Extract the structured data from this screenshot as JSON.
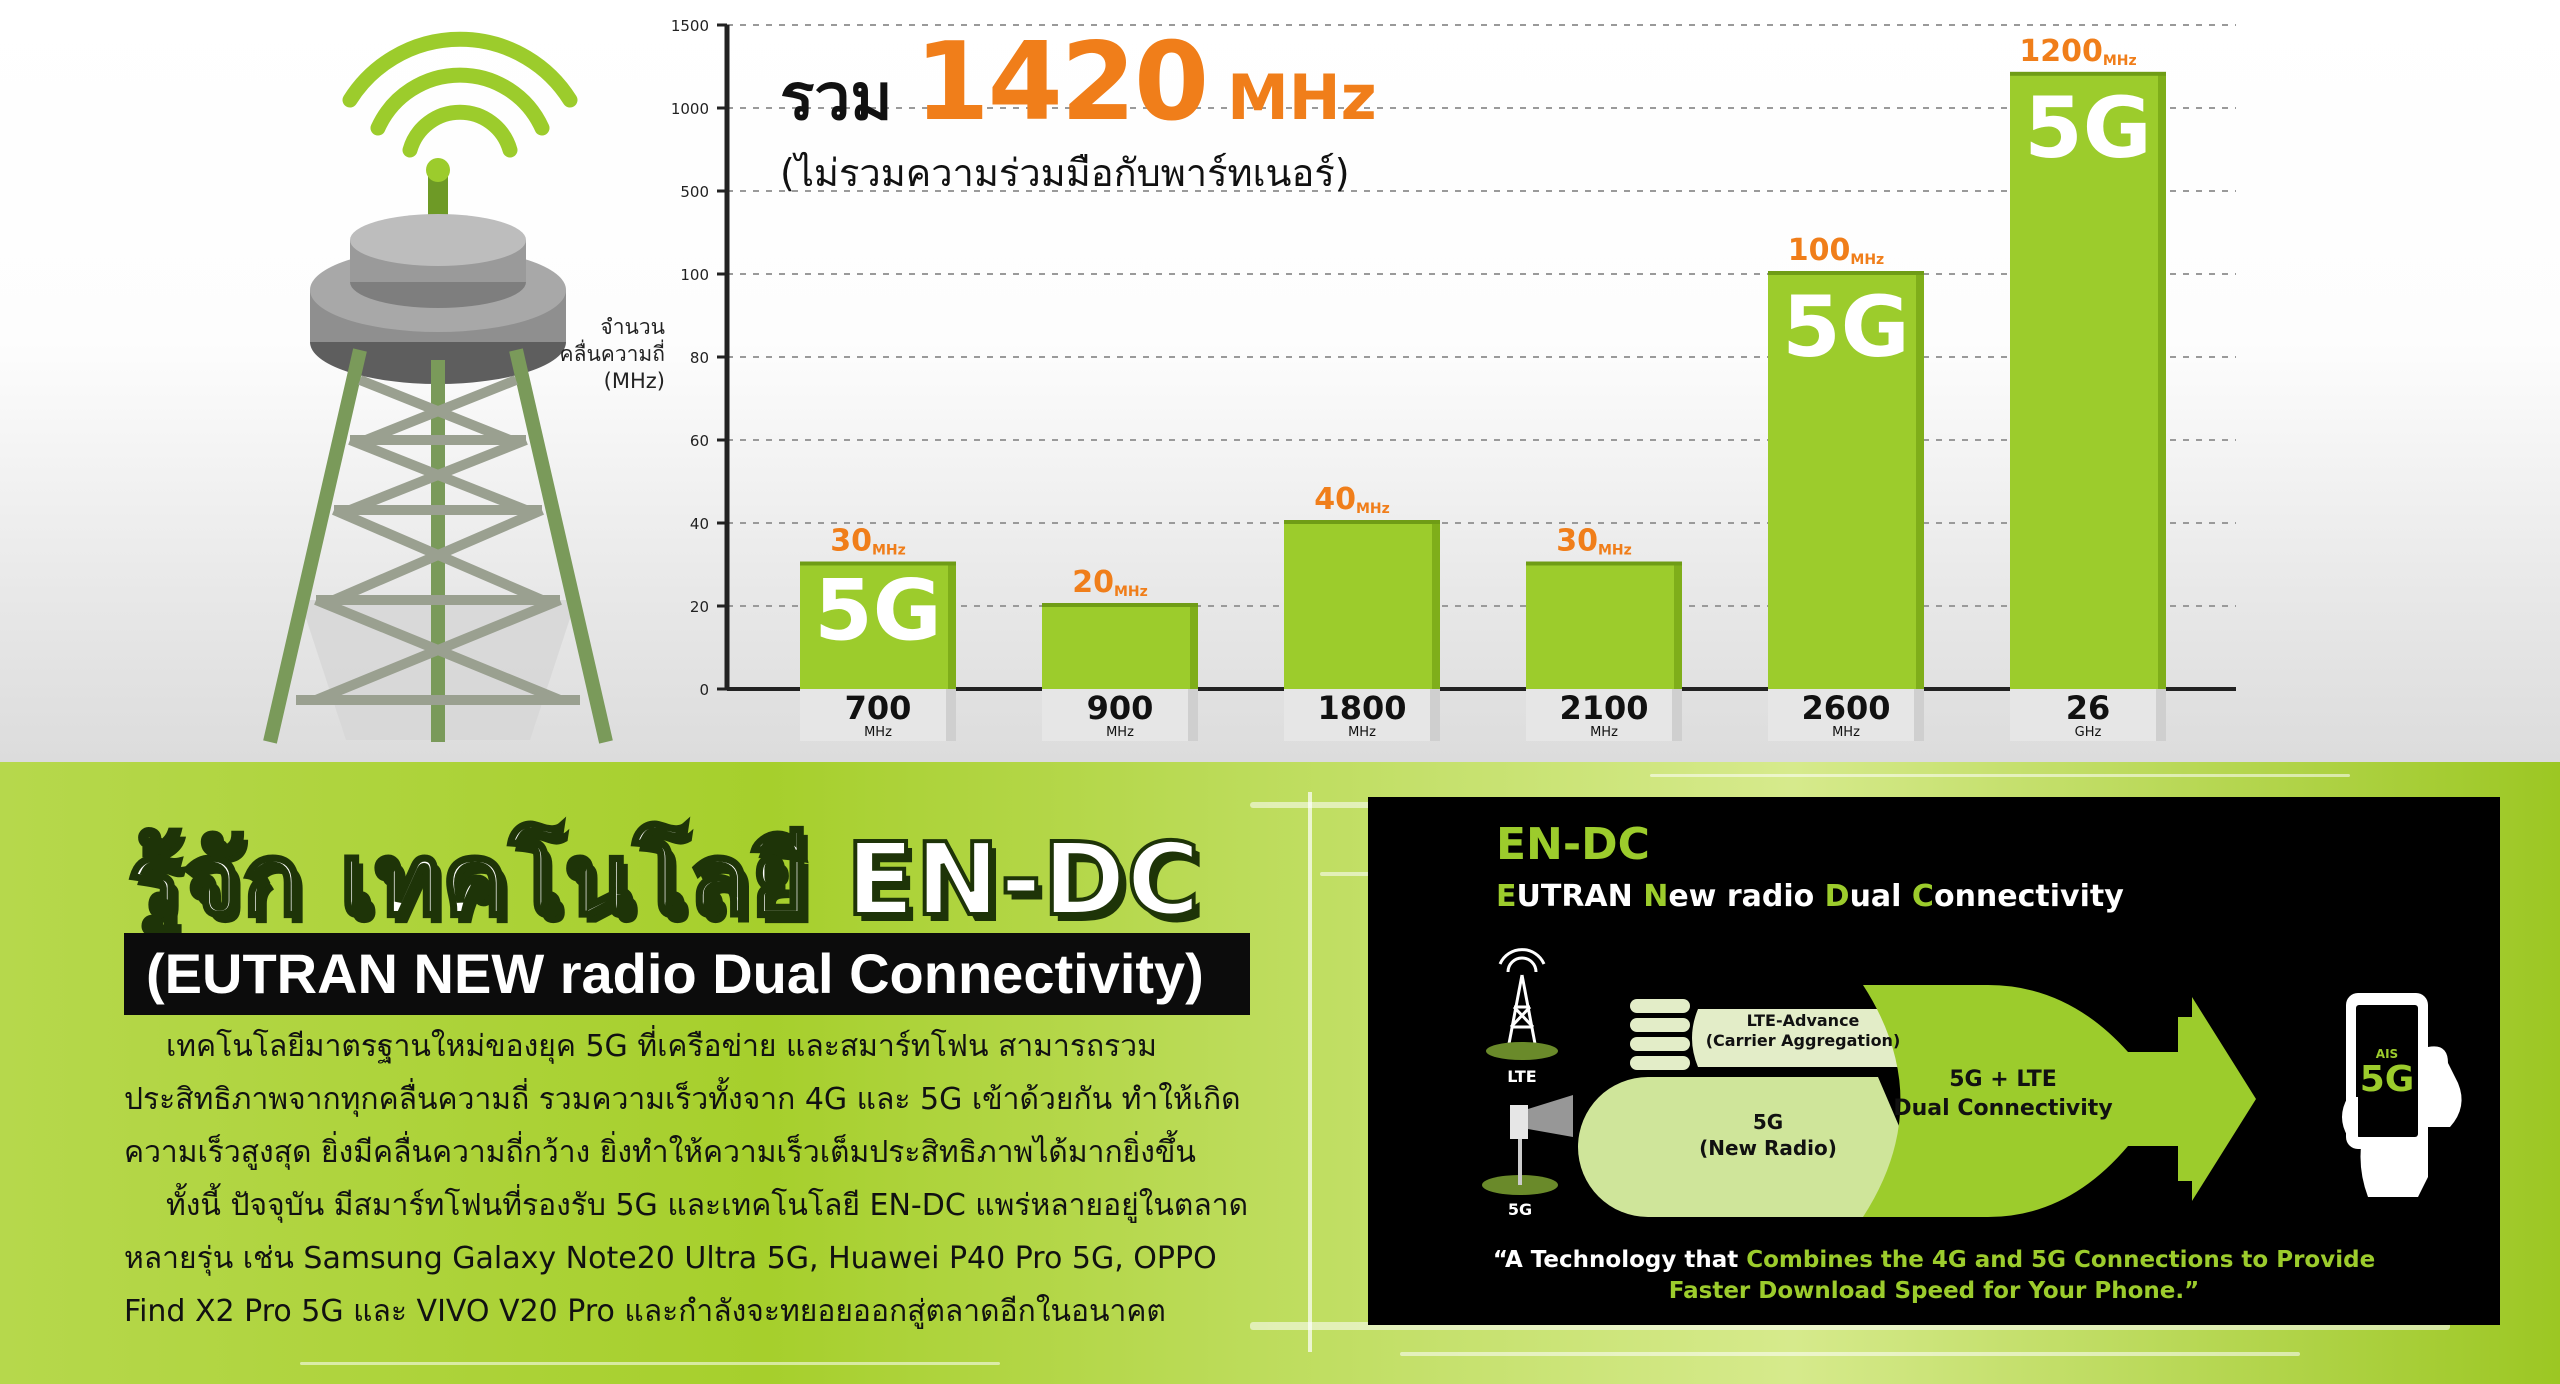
{
  "chart_data": {
    "type": "bar",
    "ylabel": [
      "จำนวน",
      "คลื่นความถี่",
      "(MHz)"
    ],
    "yticks": [
      "0",
      "20",
      "40",
      "60",
      "80",
      "100",
      "500",
      "1000",
      "1500"
    ],
    "grid": true,
    "categories": [
      {
        "band": "700",
        "unit": "MHz",
        "value": 30,
        "value_label": "30",
        "value_unit": "MHz",
        "bar_text": "5G"
      },
      {
        "band": "900",
        "unit": "MHz",
        "value": 20,
        "value_label": "20",
        "value_unit": "MHz",
        "bar_text": ""
      },
      {
        "band": "1800",
        "unit": "MHz",
        "value": 40,
        "value_label": "40",
        "value_unit": "MHz",
        "bar_text": ""
      },
      {
        "band": "2100",
        "unit": "MHz",
        "value": 30,
        "value_label": "30",
        "value_unit": "MHz",
        "bar_text": ""
      },
      {
        "band": "2600",
        "unit": "MHz",
        "value": 100,
        "value_label": "100",
        "value_unit": "MHz",
        "bar_text": "5G"
      },
      {
        "band": "26",
        "unit": "GHz",
        "value": 1200,
        "value_label": "1200",
        "value_unit": "MHz",
        "bar_text": "5G"
      }
    ],
    "total": {
      "prefix": "รวม",
      "value": "1420",
      "unit": "MHz",
      "note": "(ไม่รวมความร่วมมือกับพาร์ทเนอร์)"
    }
  },
  "article": {
    "title": "รู้จัก เทคโนโลยี EN-DC",
    "subtitle": "(EUTRAN NEW radio Dual Connectivity)",
    "paragraphs": [
      "เทคโนโลยีมาตรฐานใหม่ของยุค 5G ที่เครือข่าย และสมาร์ทโฟน สามารถรวมประสิทธิภาพจากทุกคลื่นความถี่ รวมความเร็วทั้งจาก 4G และ 5G เข้าด้วยกัน ทำให้เกิดความเร็วสูงสุด ยิ่งมีคลื่นความถี่กว้าง ยิ่งทำให้ความเร็วเต็มประสิทธิภาพได้มากยิ่งขึ้น",
      "ทั้งนี้ ปัจจุบัน มีสมาร์ทโฟนที่รองรับ 5G และเทคโนโลยี EN-DC แพร่หลายอยู่ในตลาดหลายรุ่น เช่น Samsung Galaxy Note20 Ultra 5G, Huawei P40 Pro 5G,  OPPO Find X2 Pro 5G และ VIVO V20 Pro และกำลังจะทยอยออกสู่ตลาดอีกในอนาคต"
    ]
  },
  "endc": {
    "title": "EN-DC",
    "subtitle_parts": [
      {
        "text": "E",
        "green": true
      },
      {
        "text": "UTRAN ",
        "green": false
      },
      {
        "text": "N",
        "green": true
      },
      {
        "text": "ew radio ",
        "green": false
      },
      {
        "text": "D",
        "green": true
      },
      {
        "text": "ual ",
        "green": false
      },
      {
        "text": "C",
        "green": true
      },
      {
        "text": "onnectivity",
        "green": false
      }
    ],
    "lte_label": "LTE",
    "fiveg_label": "5G",
    "lte_advance_line1": "LTE-Advance",
    "lte_advance_line2": "(Carrier Aggregation)",
    "new_radio_line1": "5G",
    "new_radio_line2": "(New Radio)",
    "combined_line1": "5G + LTE",
    "combined_line2": "Dual Connectivity",
    "phone_brand": "AIS",
    "phone_badge": "5G",
    "quote_line1_a": "“A Technology that ",
    "quote_line1_b": "Combines the 4G and 5G Connections to Provide",
    "quote_line2": "Faster Download Speed for Your Phone.”"
  },
  "colors": {
    "bar": "#9ccc2c",
    "orange": "#f07e1a",
    "green": "#9ccc2c",
    "panel": "#000000"
  }
}
